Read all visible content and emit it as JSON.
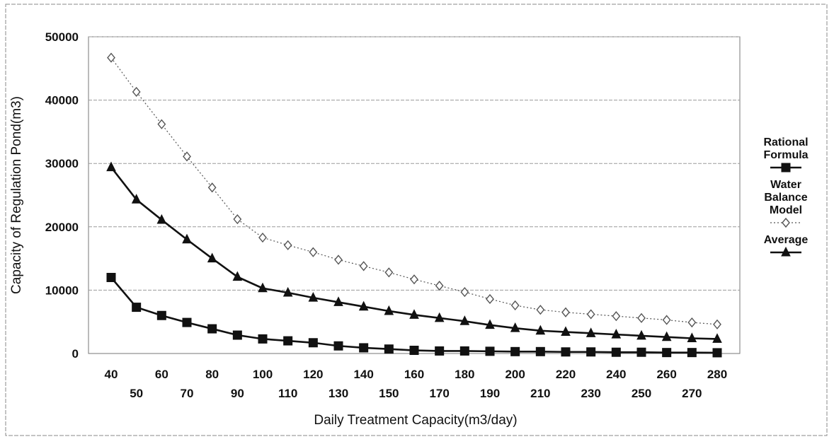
{
  "chart_data": {
    "type": "line",
    "title": "",
    "xlabel": "Daily Treatment Capacity(m3/day)",
    "ylabel": "Capacity of Regulation Pond(m3)",
    "ylim": [
      0,
      50000
    ],
    "yticks": [
      "0",
      "10000",
      "20000",
      "30000",
      "40000",
      "50000"
    ],
    "grid": true,
    "legend_position": "right",
    "x": [
      40,
      50,
      60,
      70,
      80,
      90,
      100,
      110,
      120,
      130,
      140,
      150,
      160,
      170,
      180,
      190,
      200,
      210,
      220,
      230,
      240,
      250,
      260,
      270,
      280
    ],
    "x_tick_labels": [
      "40",
      "50",
      "60",
      "70",
      "80",
      "90",
      "100",
      "110",
      "120",
      "130",
      "140",
      "150",
      "160",
      "170",
      "180",
      "190",
      "200",
      "210",
      "220",
      "230",
      "240",
      "250",
      "260",
      "270",
      "280"
    ],
    "series": [
      {
        "name": "Rational Formula",
        "legend_lines": [
          "Rational",
          "Formula"
        ],
        "marker": "square",
        "line": "solid",
        "color": "#111111",
        "values": [
          12000,
          7300,
          6000,
          4900,
          3900,
          2900,
          2300,
          2000,
          1700,
          1200,
          900,
          700,
          500,
          400,
          400,
          350,
          300,
          300,
          250,
          250,
          200,
          200,
          150,
          150,
          120
        ]
      },
      {
        "name": "Water Balance Model",
        "legend_lines": [
          "Water",
          "Balance",
          "Model"
        ],
        "marker": "diamond-open",
        "line": "dotted",
        "color": "#555555",
        "values": [
          46700,
          41300,
          36200,
          31100,
          26200,
          21200,
          18300,
          17100,
          16000,
          14800,
          13800,
          12800,
          11700,
          10700,
          9700,
          8600,
          7600,
          6900,
          6500,
          6200,
          5900,
          5600,
          5300,
          4900,
          4600
        ]
      },
      {
        "name": "Average",
        "legend_lines": [
          "Average"
        ],
        "marker": "triangle",
        "line": "solid",
        "color": "#111111",
        "values": [
          29400,
          24300,
          21100,
          18000,
          15000,
          12100,
          10300,
          9600,
          8800,
          8100,
          7400,
          6700,
          6100,
          5600,
          5100,
          4500,
          4000,
          3600,
          3400,
          3200,
          3000,
          2800,
          2600,
          2400,
          2300
        ]
      }
    ]
  }
}
